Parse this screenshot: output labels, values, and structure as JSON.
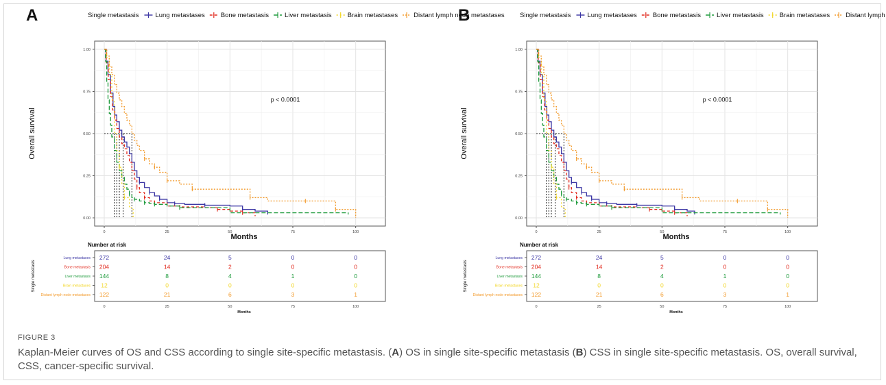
{
  "figure": {
    "label": "FIGURE 3",
    "caption_parts": [
      "Kaplan-Meier curves of OS and CSS according to single site-specific metastasis. (",
      "A",
      ") OS in single site-specific metastasis (",
      "B",
      ") CSS in single site-specific metastasis. OS, overall survival, CSS, cancer-specific survival."
    ]
  },
  "chart_data": [
    {
      "type": "line",
      "panel": "A",
      "legend_title": "Single metastasis",
      "legend_position": "top",
      "ylabel": "Overall survival",
      "xlabel": "Months",
      "xlim": [
        0,
        100
      ],
      "ylim": [
        0,
        1
      ],
      "xticks": [
        0,
        25,
        50,
        75,
        100
      ],
      "yticks": [
        "0.00",
        "0.25",
        "0.50",
        "0.75",
        "1.00"
      ],
      "grid": true,
      "annotation": "p < 0.0001",
      "series": [
        {
          "name": "Lung metastases",
          "color": "#3b36a4",
          "dash": "solid",
          "x": [
            0,
            0.7,
            1.5,
            2.5,
            3.5,
            4.2,
            5,
            6,
            7,
            8,
            9,
            10,
            11,
            12,
            13,
            14,
            16,
            18,
            20,
            22,
            25,
            28,
            32,
            40,
            50,
            55,
            60,
            65
          ],
          "y": [
            1,
            0.93,
            0.85,
            0.74,
            0.66,
            0.61,
            0.57,
            0.52,
            0.48,
            0.45,
            0.42,
            0.38,
            0.33,
            0.28,
            0.24,
            0.21,
            0.18,
            0.15,
            0.13,
            0.11,
            0.09,
            0.085,
            0.08,
            0.075,
            0.07,
            0.05,
            0.04,
            0.02
          ]
        },
        {
          "name": "Bone metastasis",
          "color": "#e1291d",
          "dash": "4,3",
          "x": [
            0,
            0.8,
            1.6,
            2.5,
            3.3,
            4.2,
            5,
            6,
            7,
            8,
            9,
            10,
            11,
            12,
            13,
            14,
            16,
            18,
            20,
            25,
            30,
            40,
            45,
            50,
            55,
            60
          ],
          "y": [
            1,
            0.92,
            0.82,
            0.72,
            0.64,
            0.58,
            0.53,
            0.48,
            0.44,
            0.41,
            0.37,
            0.33,
            0.28,
            0.23,
            0.18,
            0.15,
            0.12,
            0.1,
            0.09,
            0.07,
            0.065,
            0.06,
            0.05,
            0.04,
            0.03,
            0.01
          ]
        },
        {
          "name": "Liver metastasis",
          "color": "#1d9a3b",
          "dash": "6,3",
          "x": [
            0,
            0.5,
            1,
            1.5,
            2,
            2.5,
            3,
            4,
            5,
            6,
            7,
            8,
            9,
            10,
            11,
            12,
            14,
            16,
            18,
            20,
            25,
            30,
            50,
            97
          ],
          "y": [
            1,
            0.93,
            0.8,
            0.7,
            0.62,
            0.55,
            0.48,
            0.4,
            0.33,
            0.28,
            0.24,
            0.2,
            0.17,
            0.14,
            0.12,
            0.11,
            0.1,
            0.09,
            0.085,
            0.08,
            0.07,
            0.06,
            0.03,
            0.02
          ]
        },
        {
          "name": "Brain metastases",
          "color": "#f2d625",
          "dash": "2,3",
          "x": [
            0,
            1,
            2,
            3,
            4,
            5,
            6,
            7,
            8,
            10,
            11.5
          ],
          "y": [
            1,
            0.95,
            0.85,
            0.7,
            0.5,
            0.4,
            0.3,
            0.2,
            0.12,
            0.06,
            0
          ]
        },
        {
          "name": "Distant lymph node metastases",
          "color": "#f29a2b",
          "dash": "2,2",
          "x": [
            0,
            1,
            2,
            3,
            4,
            5,
            6,
            7,
            8,
            9,
            10,
            11,
            12,
            13,
            14,
            16,
            18,
            20,
            22,
            25,
            30,
            35,
            50,
            58,
            65,
            80,
            90,
            92,
            100
          ],
          "y": [
            1,
            0.96,
            0.9,
            0.85,
            0.79,
            0.74,
            0.7,
            0.66,
            0.62,
            0.58,
            0.55,
            0.5,
            0.46,
            0.43,
            0.4,
            0.35,
            0.32,
            0.3,
            0.27,
            0.22,
            0.2,
            0.17,
            0.17,
            0.12,
            0.1,
            0.1,
            0.1,
            0.05,
            0
          ]
        }
      ],
      "median_lines_x": [
        4,
        5,
        6,
        7.5,
        11
      ],
      "risk_table": {
        "title": "Number at risk",
        "ylabel": "Single metastasis",
        "xlabel": "Months",
        "xticks": [
          0,
          25,
          50,
          75,
          100
        ],
        "rows": [
          {
            "name": "Lung metastases",
            "color": "#3b36a4",
            "values": [
              "272",
              "24",
              "5",
              "0",
              "0"
            ]
          },
          {
            "name": "Bone metastasis",
            "color": "#e1291d",
            "values": [
              "204",
              "14",
              "2",
              "0",
              "0"
            ]
          },
          {
            "name": "Liver metastasis",
            "color": "#1d9a3b",
            "values": [
              "144",
              "8",
              "4",
              "1",
              "0"
            ]
          },
          {
            "name": "Brain metastases",
            "color": "#f2d625",
            "values": [
              "12",
              "0",
              "0",
              "0",
              "0"
            ]
          },
          {
            "name": "Distant lymph node metastases",
            "color": "#f29a2b",
            "values": [
              "122",
              "21",
              "6",
              "3",
              "1"
            ]
          }
        ]
      }
    },
    {
      "type": "line",
      "panel": "B",
      "legend_title": "Single metastasis",
      "legend_position": "top",
      "ylabel": "Overall survival",
      "xlabel": "Months",
      "xlim": [
        0,
        100
      ],
      "ylim": [
        0,
        1
      ],
      "xticks": [
        0,
        25,
        50,
        75,
        100
      ],
      "yticks": [
        "0.00",
        "0.25",
        "0.50",
        "0.75",
        "1.00"
      ],
      "grid": true,
      "annotation": "p < 0.0001",
      "series": [
        {
          "name": "Lung metastases",
          "color": "#3b36a4",
          "dash": "solid",
          "x": [
            0,
            0.7,
            1.5,
            2.5,
            3.5,
            4.2,
            5,
            6,
            7,
            8,
            9,
            10,
            11,
            12,
            13,
            14,
            16,
            18,
            20,
            22,
            25,
            28,
            32,
            40,
            50,
            55,
            60,
            63
          ],
          "y": [
            1,
            0.93,
            0.85,
            0.74,
            0.66,
            0.61,
            0.57,
            0.52,
            0.48,
            0.45,
            0.42,
            0.38,
            0.33,
            0.28,
            0.24,
            0.21,
            0.18,
            0.15,
            0.13,
            0.11,
            0.09,
            0.085,
            0.08,
            0.075,
            0.07,
            0.05,
            0.04,
            0.02
          ]
        },
        {
          "name": "Bone metastasis",
          "color": "#e1291d",
          "dash": "4,3",
          "x": [
            0,
            0.8,
            1.6,
            2.5,
            3.3,
            4.2,
            5,
            6,
            7,
            8,
            9,
            10,
            11,
            12,
            13,
            14,
            16,
            18,
            20,
            25,
            30,
            40,
            45,
            50,
            55,
            60
          ],
          "y": [
            1,
            0.92,
            0.82,
            0.72,
            0.64,
            0.58,
            0.53,
            0.48,
            0.44,
            0.41,
            0.37,
            0.33,
            0.28,
            0.23,
            0.18,
            0.15,
            0.12,
            0.1,
            0.09,
            0.07,
            0.065,
            0.06,
            0.05,
            0.04,
            0.03,
            0.01
          ]
        },
        {
          "name": "Liver metastasis",
          "color": "#1d9a3b",
          "dash": "6,3",
          "x": [
            0,
            0.5,
            1,
            1.5,
            2,
            2.5,
            3,
            4,
            5,
            6,
            7,
            8,
            9,
            10,
            11,
            12,
            14,
            16,
            18,
            20,
            25,
            30,
            50,
            97
          ],
          "y": [
            1,
            0.93,
            0.8,
            0.7,
            0.62,
            0.55,
            0.48,
            0.4,
            0.33,
            0.28,
            0.24,
            0.2,
            0.17,
            0.14,
            0.12,
            0.11,
            0.1,
            0.09,
            0.085,
            0.08,
            0.07,
            0.06,
            0.03,
            0.02
          ]
        },
        {
          "name": "Brain metastases",
          "color": "#f2d625",
          "dash": "2,3",
          "x": [
            0,
            1,
            2,
            3,
            4,
            5,
            6,
            7,
            8,
            10,
            11.5
          ],
          "y": [
            1,
            0.95,
            0.85,
            0.7,
            0.5,
            0.4,
            0.3,
            0.2,
            0.12,
            0.06,
            0
          ]
        },
        {
          "name": "Distant lymph node metastases",
          "color": "#f29a2b",
          "dash": "2,2",
          "x": [
            0,
            1,
            2,
            3,
            4,
            5,
            6,
            7,
            8,
            9,
            10,
            11,
            12,
            13,
            14,
            16,
            18,
            20,
            22,
            25,
            30,
            35,
            50,
            58,
            65,
            80,
            90,
            92,
            100
          ],
          "y": [
            1,
            0.96,
            0.9,
            0.85,
            0.79,
            0.74,
            0.7,
            0.66,
            0.62,
            0.58,
            0.55,
            0.5,
            0.46,
            0.43,
            0.4,
            0.35,
            0.32,
            0.3,
            0.27,
            0.22,
            0.2,
            0.17,
            0.17,
            0.12,
            0.1,
            0.1,
            0.1,
            0.05,
            0
          ]
        }
      ],
      "median_lines_x": [
        4,
        5,
        6,
        7.5,
        11
      ],
      "risk_table": {
        "title": "Number at risk",
        "ylabel": "Single metastasis",
        "xlabel": "Months",
        "xticks": [
          0,
          25,
          50,
          75,
          100
        ],
        "rows": [
          {
            "name": "Lung metastases",
            "color": "#3b36a4",
            "values": [
              "272",
              "24",
              "5",
              "0",
              "0"
            ]
          },
          {
            "name": "Bone metastasis",
            "color": "#e1291d",
            "values": [
              "204",
              "14",
              "2",
              "0",
              "0"
            ]
          },
          {
            "name": "Liver metastasis",
            "color": "#1d9a3b",
            "values": [
              "144",
              "8",
              "4",
              "1",
              "0"
            ]
          },
          {
            "name": "Brain metastases",
            "color": "#f2d625",
            "values": [
              "12",
              "0",
              "0",
              "0",
              "0"
            ]
          },
          {
            "name": "Distant lymph node metastases",
            "color": "#f29a2b",
            "values": [
              "122",
              "21",
              "6",
              "3",
              "1"
            ]
          }
        ]
      }
    }
  ]
}
